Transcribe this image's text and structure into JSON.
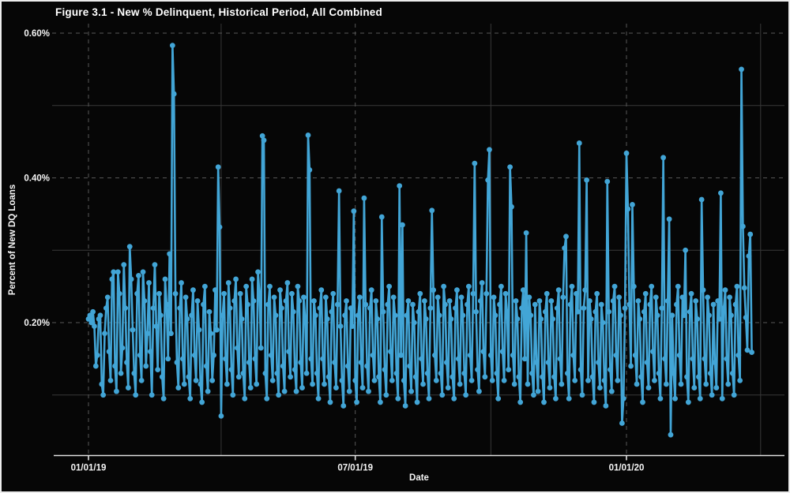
{
  "window": {
    "background": "#060606",
    "frame_border_color": "#ececec"
  },
  "chart_data": {
    "type": "line",
    "title": "Figure 3.1 - New % Delinquent, Historical Period, All Combined",
    "xlabel": "Date",
    "ylabel": "Percent of New DQ Loans",
    "legend": "none",
    "grid": "major-dashed, minor-solid",
    "series_name": "New % Delinquent",
    "series_color": "#42a5d6",
    "marker": "circle",
    "background_color": "#060606",
    "major_grid_color": "#585858",
    "minor_grid_color": "#383838",
    "axis_line_color": "#e0e0e0",
    "text_color": "#f5f5f5",
    "unit": "%",
    "start_date": "01/01/19",
    "frequency": "daily",
    "x_tick_labels": [
      "01/01/19",
      "07/01/19",
      "01/01/20"
    ],
    "x_tick_day_index": [
      0,
      181,
      365
    ],
    "x_minor_day_index": [
      90,
      273,
      456
    ],
    "y_tick_labels": [
      "0.20%",
      "0.40%",
      "0.60%"
    ],
    "y_ticks": [
      0.2,
      0.4,
      0.6
    ],
    "y_minor_ticks": [
      0.1,
      0.3,
      0.5
    ],
    "ylim": [
      0.016,
      0.625
    ],
    "n_points": 451,
    "values": [
      0.205,
      0.21,
      0.2,
      0.215,
      0.195,
      0.14,
      0.155,
      0.205,
      0.21,
      0.115,
      0.1,
      0.185,
      0.22,
      0.235,
      0.16,
      0.12,
      0.26,
      0.27,
      0.14,
      0.105,
      0.27,
      0.24,
      0.13,
      0.165,
      0.28,
      0.22,
      0.145,
      0.11,
      0.305,
      0.26,
      0.19,
      0.13,
      0.1,
      0.24,
      0.265,
      0.155,
      0.12,
      0.27,
      0.23,
      0.14,
      0.185,
      0.255,
      0.16,
      0.1,
      0.22,
      0.28,
      0.195,
      0.135,
      0.24,
      0.21,
      0.125,
      0.095,
      0.26,
      0.225,
      0.15,
      0.295,
      0.185,
      0.583,
      0.516,
      0.24,
      0.145,
      0.11,
      0.22,
      0.255,
      0.15,
      0.115,
      0.235,
      0.205,
      0.125,
      0.095,
      0.21,
      0.245,
      0.155,
      0.12,
      0.23,
      0.19,
      0.115,
      0.09,
      0.225,
      0.25,
      0.14,
      0.105,
      0.215,
      0.185,
      0.12,
      0.155,
      0.245,
      0.19,
      0.415,
      0.332,
      0.071,
      0.21,
      0.24,
      0.15,
      0.115,
      0.255,
      0.22,
      0.135,
      0.1,
      0.23,
      0.26,
      0.165,
      0.125,
      0.24,
      0.205,
      0.13,
      0.095,
      0.25,
      0.225,
      0.145,
      0.11,
      0.26,
      0.23,
      0.15,
      0.115,
      0.27,
      0.24,
      0.165,
      0.458,
      0.452,
      0.13,
      0.095,
      0.225,
      0.25,
      0.155,
      0.12,
      0.235,
      0.21,
      0.13,
      0.1,
      0.245,
      0.22,
      0.14,
      0.105,
      0.23,
      0.255,
      0.16,
      0.125,
      0.24,
      0.215,
      0.135,
      0.105,
      0.25,
      0.23,
      0.145,
      0.11,
      0.235,
      0.205,
      0.13,
      0.459,
      0.411,
      0.15,
      0.115,
      0.23,
      0.21,
      0.13,
      0.095,
      0.22,
      0.245,
      0.15,
      0.115,
      0.235,
      0.205,
      0.125,
      0.09,
      0.215,
      0.24,
      0.145,
      0.11,
      0.225,
      0.382,
      0.195,
      0.12,
      0.085,
      0.21,
      0.23,
      0.14,
      0.105,
      0.22,
      0.195,
      0.354,
      0.12,
      0.09,
      0.21,
      0.235,
      0.145,
      0.11,
      0.372,
      0.225,
      0.14,
      0.105,
      0.22,
      0.245,
      0.155,
      0.12,
      0.23,
      0.205,
      0.125,
      0.09,
      0.346,
      0.215,
      0.135,
      0.1,
      0.225,
      0.25,
      0.16,
      0.12,
      0.235,
      0.21,
      0.13,
      0.095,
      0.389,
      0.155,
      0.335,
      0.12,
      0.085,
      0.21,
      0.23,
      0.14,
      0.105,
      0.225,
      0.2,
      0.125,
      0.09,
      0.215,
      0.24,
      0.15,
      0.115,
      0.23,
      0.205,
      0.13,
      0.095,
      0.22,
      0.355,
      0.245,
      0.155,
      0.12,
      0.235,
      0.21,
      0.13,
      0.1,
      0.25,
      0.225,
      0.145,
      0.11,
      0.23,
      0.205,
      0.125,
      0.095,
      0.22,
      0.245,
      0.15,
      0.115,
      0.235,
      0.21,
      0.13,
      0.1,
      0.225,
      0.25,
      0.155,
      0.12,
      0.24,
      0.42,
      0.215,
      0.135,
      0.105,
      0.23,
      0.255,
      0.16,
      0.125,
      0.24,
      0.397,
      0.439,
      0.155,
      0.12,
      0.235,
      0.21,
      0.13,
      0.095,
      0.225,
      0.25,
      0.16,
      0.12,
      0.24,
      0.215,
      0.135,
      0.415,
      0.36,
      0.155,
      0.115,
      0.23,
      0.205,
      0.125,
      0.09,
      0.22,
      0.245,
      0.15,
      0.324,
      0.115,
      0.235,
      0.21,
      0.13,
      0.1,
      0.225,
      0.145,
      0.105,
      0.23,
      0.205,
      0.125,
      0.09,
      0.215,
      0.24,
      0.145,
      0.11,
      0.23,
      0.205,
      0.125,
      0.095,
      0.22,
      0.245,
      0.15,
      0.115,
      0.235,
      0.303,
      0.319,
      0.13,
      0.095,
      0.225,
      0.25,
      0.155,
      0.12,
      0.24,
      0.215,
      0.448,
      0.135,
      0.1,
      0.22,
      0.245,
      0.397,
      0.12,
      0.23,
      0.205,
      0.125,
      0.09,
      0.215,
      0.24,
      0.145,
      0.11,
      0.225,
      0.2,
      0.12,
      0.085,
      0.395,
      0.215,
      0.135,
      0.105,
      0.23,
      0.25,
      0.155,
      0.12,
      0.235,
      0.21,
      0.061,
      0.095,
      0.22,
      0.434,
      0.357,
      0.225,
      0.14,
      0.363,
      0.25,
      0.155,
      0.115,
      0.23,
      0.205,
      0.125,
      0.09,
      0.215,
      0.24,
      0.145,
      0.11,
      0.225,
      0.25,
      0.16,
      0.12,
      0.235,
      0.21,
      0.13,
      0.095,
      0.22,
      0.428,
      0.15,
      0.115,
      0.23,
      0.343,
      0.045,
      0.21,
      0.13,
      0.095,
      0.225,
      0.25,
      0.155,
      0.115,
      0.235,
      0.21,
      0.3,
      0.125,
      0.09,
      0.215,
      0.24,
      0.15,
      0.11,
      0.23,
      0.205,
      0.125,
      0.095,
      0.37,
      0.245,
      0.15,
      0.115,
      0.235,
      0.21,
      0.13,
      0.1,
      0.225,
      0.145,
      0.11,
      0.23,
      0.205,
      0.379,
      0.095,
      0.22,
      0.245,
      0.15,
      0.115,
      0.235,
      0.21,
      0.13,
      0.1,
      0.225,
      0.25,
      0.155,
      0.12,
      0.55,
      0.333,
      0.248,
      0.207,
      0.162,
      0.292,
      0.322,
      0.159
    ]
  }
}
